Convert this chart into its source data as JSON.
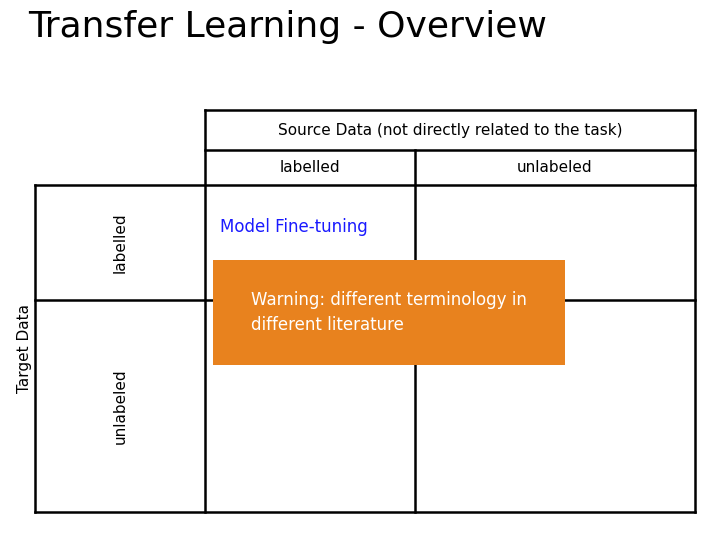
{
  "title": "Transfer Learning - Overview",
  "title_fontsize": 26,
  "title_color": "#000000",
  "background_color": "#ffffff",
  "source_label": "Source Data (not directly related to the task)",
  "source_col1": "labelled",
  "source_col2": "unlabeled",
  "target_label": "Target Data",
  "target_row1": "labelled",
  "target_row2": "unlabeled",
  "cell_text": "Model Fine-tuning",
  "cell_text_color": "#1a1aff",
  "warning_text": "Warning: different terminology in\ndifferent literature",
  "warning_bg_color": "#e8821e",
  "warning_text_color": "#ffffff",
  "line_color": "#000000",
  "line_width": 1.8,
  "text_fontsize": 11,
  "cell_fontsize": 12
}
